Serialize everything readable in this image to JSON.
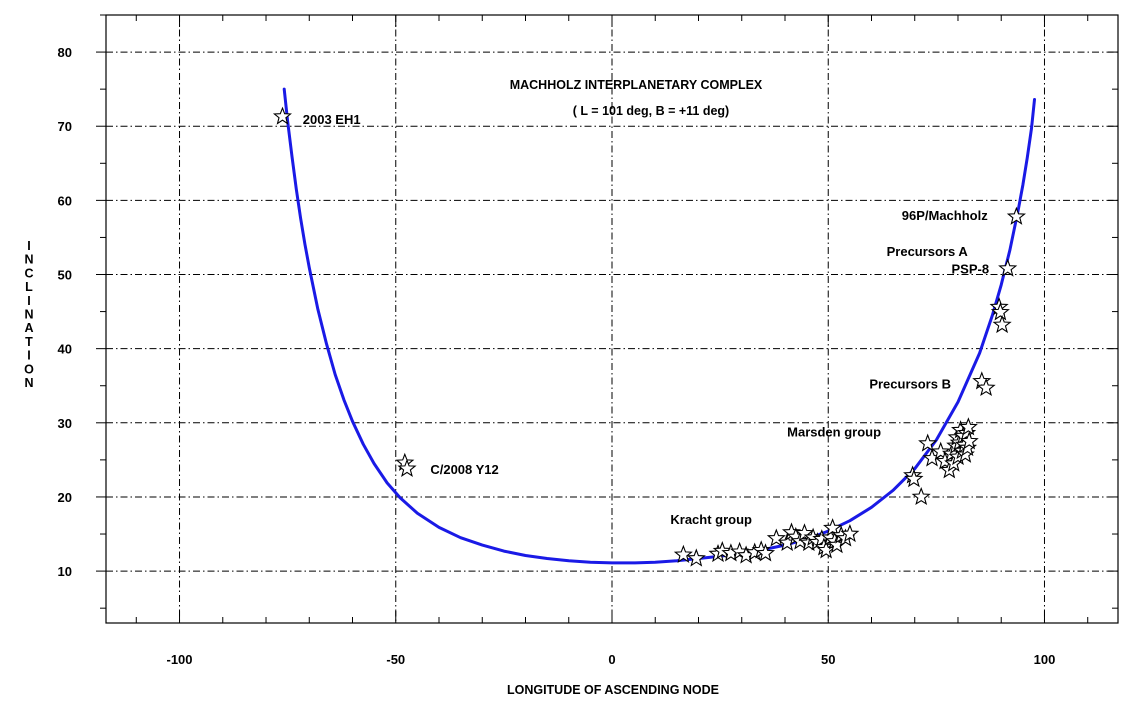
{
  "chart_data": {
    "type": "scatter",
    "title": "MACHHOLZ INTERPLANETARY COMPLEX",
    "subtitle": "( L = 101 deg, B = +11 deg)",
    "xlabel": "LONGITUDE OF ASCENDING NODE",
    "ylabel": "INCLINATION",
    "xlim": [
      -117,
      117
    ],
    "ylim": [
      3,
      85
    ],
    "xticks": [
      -100,
      -50,
      0,
      50,
      100
    ],
    "yticks": [
      10,
      20,
      30,
      40,
      50,
      60,
      70,
      80
    ],
    "grid": true,
    "curve_color": "#1a1ae6",
    "curve": {
      "name": "",
      "x": [
        -75.8,
        -75,
        -74,
        -73,
        -72,
        -71,
        -70,
        -68,
        -66,
        -64,
        -62,
        -60,
        -57.5,
        -55,
        -52,
        -49,
        -45,
        -40,
        -35,
        -30,
        -25,
        -20,
        -15,
        -10,
        -5,
        0,
        5,
        10,
        15,
        20,
        25,
        30,
        35,
        40,
        45,
        50,
        55,
        60,
        65,
        70,
        75,
        80,
        85,
        88,
        90,
        92,
        94,
        95,
        96,
        97,
        97.7
      ],
      "y": [
        75,
        70.7,
        65.9,
        61.5,
        57.6,
        54.1,
        50.9,
        45.3,
        40.6,
        36.5,
        33.1,
        30.2,
        27.1,
        24.5,
        21.9,
        19.9,
        17.8,
        15.9,
        14.5,
        13.5,
        12.7,
        12.1,
        11.7,
        11.4,
        11.2,
        11.1,
        11.1,
        11.2,
        11.4,
        11.7,
        12.0,
        12.4,
        12.9,
        13.5,
        14.3,
        15.4,
        16.8,
        18.6,
        20.9,
        23.8,
        27.7,
        32.8,
        39.4,
        44.6,
        48.6,
        53.3,
        58.9,
        62.1,
        65.7,
        69.7,
        73.6
      ]
    },
    "points": [
      {
        "x": -76.2,
        "y": 71.3
      },
      {
        "x": -47.9,
        "y": 24.6
      },
      {
        "x": -47.4,
        "y": 23.8
      },
      {
        "x": 16.5,
        "y": 12.2
      },
      {
        "x": 19.5,
        "y": 11.7
      },
      {
        "x": 24.5,
        "y": 12.3
      },
      {
        "x": 25.5,
        "y": 12.7
      },
      {
        "x": 27.5,
        "y": 12.4
      },
      {
        "x": 29.5,
        "y": 12.6
      },
      {
        "x": 31.0,
        "y": 12.1
      },
      {
        "x": 33.0,
        "y": 12.5
      },
      {
        "x": 34.5,
        "y": 12.8
      },
      {
        "x": 35.5,
        "y": 12.4
      },
      {
        "x": 38.0,
        "y": 14.4
      },
      {
        "x": 40.5,
        "y": 13.8
      },
      {
        "x": 41.5,
        "y": 15.2
      },
      {
        "x": 42.5,
        "y": 14.6
      },
      {
        "x": 43.5,
        "y": 14.0
      },
      {
        "x": 44.5,
        "y": 15.1
      },
      {
        "x": 45.5,
        "y": 13.8
      },
      {
        "x": 46.5,
        "y": 14.5
      },
      {
        "x": 47.5,
        "y": 13.9
      },
      {
        "x": 48.5,
        "y": 14.3
      },
      {
        "x": 49.0,
        "y": 13.2
      },
      {
        "x": 49.5,
        "y": 12.8
      },
      {
        "x": 50.5,
        "y": 14.5
      },
      {
        "x": 51.0,
        "y": 15.8
      },
      {
        "x": 51.5,
        "y": 14.0
      },
      {
        "x": 52.0,
        "y": 13.5
      },
      {
        "x": 53.0,
        "y": 14.8
      },
      {
        "x": 54.0,
        "y": 14.4
      },
      {
        "x": 55.0,
        "y": 15.0
      },
      {
        "x": 69.5,
        "y": 22.9
      },
      {
        "x": 69.8,
        "y": 22.4
      },
      {
        "x": 71.5,
        "y": 20.0
      },
      {
        "x": 73.0,
        "y": 27.2
      },
      {
        "x": 74.0,
        "y": 25.2
      },
      {
        "x": 76.0,
        "y": 26.1
      },
      {
        "x": 77.0,
        "y": 24.8
      },
      {
        "x": 78.0,
        "y": 23.6
      },
      {
        "x": 78.5,
        "y": 25.8
      },
      {
        "x": 79.0,
        "y": 24.5
      },
      {
        "x": 79.5,
        "y": 26.9
      },
      {
        "x": 79.8,
        "y": 28.0
      },
      {
        "x": 80.0,
        "y": 25.4
      },
      {
        "x": 80.3,
        "y": 27.3
      },
      {
        "x": 80.6,
        "y": 29.0
      },
      {
        "x": 81.0,
        "y": 26.2
      },
      {
        "x": 81.2,
        "y": 28.2
      },
      {
        "x": 81.5,
        "y": 27.0
      },
      {
        "x": 81.7,
        "y": 25.7
      },
      {
        "x": 82.0,
        "y": 28.6
      },
      {
        "x": 82.2,
        "y": 26.6
      },
      {
        "x": 82.4,
        "y": 29.4
      },
      {
        "x": 82.6,
        "y": 27.5
      },
      {
        "x": 85.5,
        "y": 35.6
      },
      {
        "x": 86.5,
        "y": 34.7
      },
      {
        "x": 89.5,
        "y": 45.6
      },
      {
        "x": 89.8,
        "y": 44.9
      },
      {
        "x": 90.2,
        "y": 43.2
      },
      {
        "x": 91.5,
        "y": 50.8
      },
      {
        "x": 93.5,
        "y": 57.8
      }
    ],
    "annotations": [
      {
        "text": "2003 EH1",
        "x": -71.5,
        "y": 71.0
      },
      {
        "text": "C/2008 Y12",
        "x": -42.0,
        "y": 23.8
      },
      {
        "text": "Kracht group",
        "x": 13.5,
        "y": 17.0
      },
      {
        "text": "Marsden group",
        "x": 40.5,
        "y": 28.8
      },
      {
        "text": "Precursors B",
        "x": 59.5,
        "y": 35.3
      },
      {
        "text": "Precursors A",
        "x": 63.5,
        "y": 51.2,
        "dy": -14.5
      },
      {
        "text": "PSP-8",
        "x": 78.5,
        "y": 50.8
      },
      {
        "text": "96P/Machholz",
        "x": 67.0,
        "y": 58.0
      }
    ]
  }
}
